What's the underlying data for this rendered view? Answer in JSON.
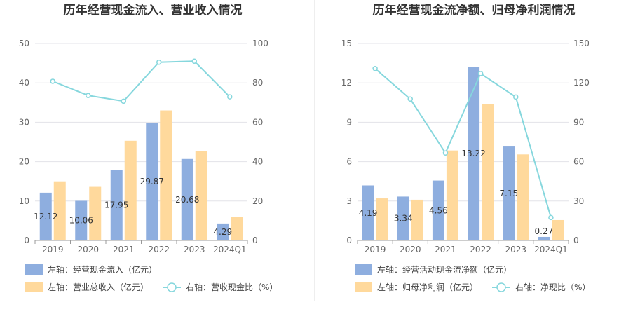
{
  "colors": {
    "bar_primary": "#8eaedf",
    "bar_secondary": "#ffd99c",
    "line": "#86d7dd",
    "grid": "#e3e3e8",
    "axis": "#666666",
    "text": "#333333"
  },
  "chart_data": [
    {
      "type": "bar",
      "title": "历年经营现金流入、营业收入情况",
      "categories": [
        "2019",
        "2020",
        "2021",
        "2022",
        "2023",
        "2024Q1"
      ],
      "y_left": {
        "min": 0,
        "max": 50,
        "ticks": [
          "0",
          "10",
          "20",
          "30",
          "40",
          "50"
        ]
      },
      "y_right": {
        "min": 0,
        "max": 100,
        "ticks": [
          "0",
          "20",
          "40",
          "60",
          "80",
          "100"
        ]
      },
      "series": [
        {
          "name": "左轴：经营现金流入（亿元）",
          "axis": "left",
          "kind": "bar",
          "values": [
            12.12,
            10.06,
            17.95,
            29.87,
            20.68,
            4.29
          ],
          "labels": [
            "12.12",
            "10.06",
            "17.95",
            "29.87",
            "20.68",
            "4.29"
          ]
        },
        {
          "name": "左轴：营业总收入（亿元）",
          "axis": "left",
          "kind": "bar",
          "values": [
            15.0,
            13.6,
            25.3,
            33.0,
            22.7,
            5.9
          ]
        },
        {
          "name": "右轴：营收现金比（%）",
          "axis": "right",
          "kind": "line",
          "values": [
            80.8,
            73.6,
            70.7,
            90.5,
            91.0,
            72.9
          ]
        }
      ]
    },
    {
      "type": "bar",
      "title": "历年经营现金流净额、归母净利润情况",
      "categories": [
        "2019",
        "2020",
        "2021",
        "2022",
        "2023",
        "2024Q1"
      ],
      "y_left": {
        "min": 0,
        "max": 15,
        "ticks": [
          "0",
          "3",
          "6",
          "9",
          "12",
          "15"
        ]
      },
      "y_right": {
        "min": 0,
        "max": 150,
        "ticks": [
          "0",
          "30",
          "60",
          "90",
          "120",
          "150"
        ]
      },
      "series": [
        {
          "name": "左轴：经营活动现金流净额（亿元）",
          "axis": "left",
          "kind": "bar",
          "values": [
            4.19,
            3.34,
            4.56,
            13.22,
            7.15,
            0.27
          ],
          "labels": [
            "4.19",
            "3.34",
            "4.56",
            "13.22",
            "7.15",
            "0.27"
          ]
        },
        {
          "name": "左轴：归母净利润（亿元）",
          "axis": "left",
          "kind": "bar",
          "values": [
            3.2,
            3.1,
            6.85,
            10.4,
            6.55,
            1.55
          ]
        },
        {
          "name": "右轴：净现比（%）",
          "axis": "right",
          "kind": "line",
          "values": [
            130.9,
            107.7,
            66.6,
            127.1,
            109.2,
            17.4
          ]
        }
      ]
    }
  ]
}
